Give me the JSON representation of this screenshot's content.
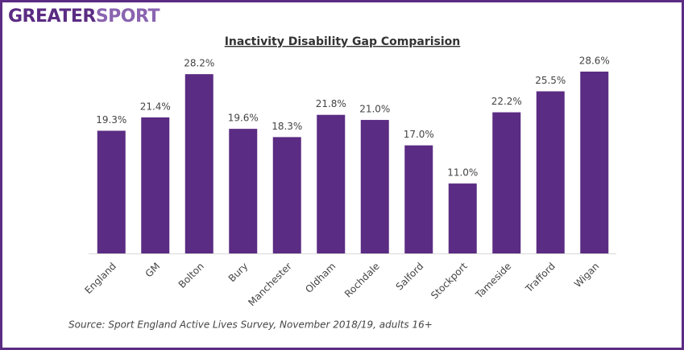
{
  "brand": [
    "GREATER",
    "SPORT"
  ],
  "chart_data": {
    "type": "bar",
    "title": "Inactivity Disability Gap Comparision",
    "categories": [
      "England",
      "GM",
      "Bolton",
      "Bury",
      "Manchester",
      "Oldham",
      "Rochdale",
      "Salford",
      "Stockport",
      "Tameside",
      "Trafford",
      "Wigan"
    ],
    "values": [
      19.3,
      21.4,
      28.2,
      19.6,
      18.3,
      21.8,
      21.0,
      17.0,
      11.0,
      22.2,
      25.5,
      28.6
    ],
    "value_labels": [
      "19.3%",
      "21.4%",
      "28.2%",
      "19.6%",
      "18.3%",
      "21.8%",
      "21.0%",
      "17.0%",
      "11.0%",
      "22.2%",
      "25.5%",
      "28.6%"
    ],
    "color": "#5b2c83",
    "source": "Source: Sport England Active Lives Survey, November 2018/19, adults 16+"
  }
}
